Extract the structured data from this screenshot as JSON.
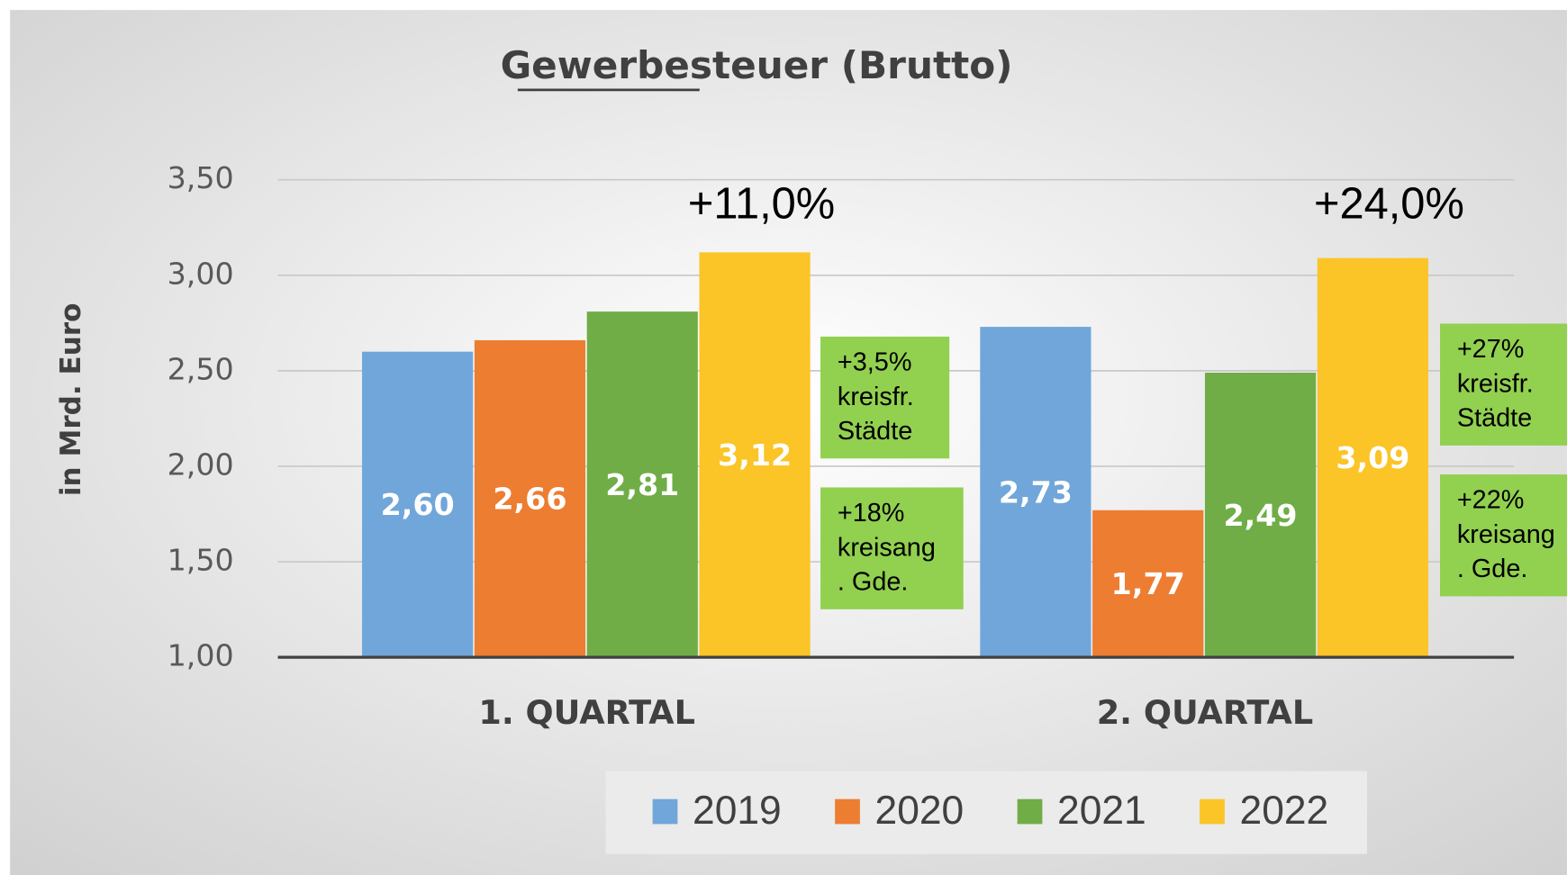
{
  "chart_data": {
    "type": "bar",
    "title": "Gewerbesteuer (Brutto)",
    "y_label": "in Mrd. Euro",
    "categories": [
      "1. QUARTAL",
      "2. QUARTAL"
    ],
    "series": [
      {
        "name": "2019",
        "color": "#70a6da",
        "values": [
          2.6,
          2.73
        ],
        "value_labels": [
          "2,60",
          "2,73"
        ]
      },
      {
        "name": "2020",
        "color": "#ed7d31",
        "values": [
          2.66,
          1.77
        ],
        "value_labels": [
          "2,66",
          "1,77"
        ]
      },
      {
        "name": "2021",
        "color": "#70ad47",
        "values": [
          2.81,
          2.49
        ],
        "value_labels": [
          "2,81",
          "2,49"
        ]
      },
      {
        "name": "2022",
        "color": "#fbc427",
        "values": [
          3.12,
          3.09
        ],
        "value_labels": [
          "3,12",
          "3,09"
        ]
      }
    ],
    "ylim": [
      1.0,
      3.5
    ],
    "yticks": [
      {
        "value": 1.0,
        "label": "1,00"
      },
      {
        "value": 1.5,
        "label": "1,50"
      },
      {
        "value": 2.0,
        "label": "2,00"
      },
      {
        "value": 2.5,
        "label": "2,50"
      },
      {
        "value": 3.0,
        "label": "3,00"
      },
      {
        "value": 3.5,
        "label": "3,50"
      }
    ],
    "grid": true,
    "annotations": [
      "+11,0%",
      "+24,0%"
    ],
    "boxes": [
      {
        "lines": [
          "+3,5%",
          "kreisfr.",
          "Städte"
        ],
        "color": "#92d050"
      },
      {
        "lines": [
          "+18%",
          "kreisang",
          ". Gde."
        ],
        "color": "#92d050"
      },
      {
        "lines": [
          "+27%",
          "kreisfr.",
          "Städte"
        ],
        "color": "#92d050"
      },
      {
        "lines": [
          "+22%",
          "kreisang",
          ". Gde."
        ],
        "color": "#92d050"
      }
    ]
  }
}
